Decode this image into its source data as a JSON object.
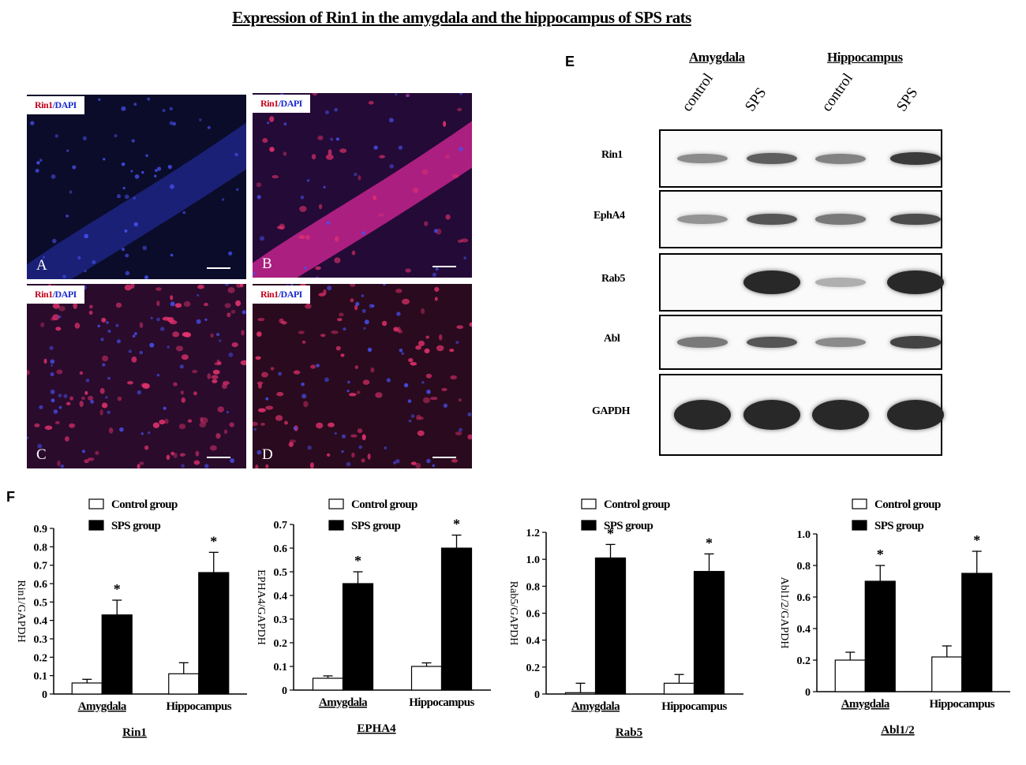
{
  "title": "Expression of  Rin1 in the amygdala and the hippocampus of SPS rats",
  "micrographs": [
    {
      "letter": "A",
      "stain_red": "Rin1",
      "stain_blue": "/DAPI"
    },
    {
      "letter": "B",
      "stain_red": "Rin1",
      "stain_blue": "/DAPI"
    },
    {
      "letter": "C",
      "stain_red": "Rin1",
      "stain_blue": "/DAPI"
    },
    {
      "letter": "D",
      "stain_red": "Rin1",
      "stain_blue": "/DAPI"
    }
  ],
  "western": {
    "panel_letter": "E",
    "regions": [
      "Amygdala",
      "Hippocampus"
    ],
    "lanes": [
      "control",
      "SPS",
      "control",
      "SPS"
    ],
    "blots": [
      {
        "name": "Rin1",
        "intensity": [
          0.45,
          0.7,
          0.5,
          0.9
        ]
      },
      {
        "name": "EphA4",
        "intensity": [
          0.4,
          0.75,
          0.55,
          0.8
        ]
      },
      {
        "name": "Rab5",
        "intensity": [
          0.02,
          1.0,
          0.25,
          1.0
        ]
      },
      {
        "name": "Abl",
        "intensity": [
          0.55,
          0.75,
          0.45,
          0.85
        ]
      },
      {
        "name": "GAPDH",
        "intensity": [
          1.0,
          1.0,
          1.0,
          1.0
        ]
      }
    ]
  },
  "panel_f_letter": "F",
  "chart_data": [
    {
      "type": "bar",
      "title": "Rin1",
      "ylabel": "Rin1/GAPDH",
      "ylim": [
        0,
        0.9
      ],
      "yticks": [
        "0",
        "0.1",
        "0.2",
        "0.3",
        "0.4",
        "0.5",
        "0.6",
        "0.7",
        "0.8",
        "0.9"
      ],
      "categories": [
        "Amygdala",
        "Hippocampus"
      ],
      "series": [
        {
          "name": "Control group",
          "values": [
            0.06,
            0.11
          ],
          "errors": [
            0.02,
            0.06
          ],
          "color": "#ffffff"
        },
        {
          "name": "SPS group",
          "values": [
            0.43,
            0.66
          ],
          "errors": [
            0.08,
            0.11
          ],
          "color": "#000000"
        }
      ],
      "significance": [
        "*",
        "*"
      ]
    },
    {
      "type": "bar",
      "title": "EPHA4",
      "ylabel": "EPHA4/GAPDH",
      "ylim": [
        0,
        0.7
      ],
      "yticks": [
        "0",
        "0.1",
        "0.2",
        "0.3",
        "0.4",
        "0.5",
        "0.6",
        "0.7"
      ],
      "categories": [
        "Amygdala",
        "Hippocampus"
      ],
      "series": [
        {
          "name": "Control group",
          "values": [
            0.05,
            0.1
          ],
          "errors": [
            0.01,
            0.015
          ],
          "color": "#ffffff"
        },
        {
          "name": "SPS group",
          "values": [
            0.45,
            0.6
          ],
          "errors": [
            0.05,
            0.055
          ],
          "color": "#000000"
        }
      ],
      "significance": [
        "*",
        "*"
      ]
    },
    {
      "type": "bar",
      "title": "Rab5",
      "ylabel": "Rab5/GAPDH",
      "ylim": [
        0,
        1.2
      ],
      "yticks": [
        "0",
        "0.2",
        "0.4",
        "0.6",
        "0.8",
        "1.0",
        "1.2"
      ],
      "categories": [
        "Amygdala",
        "Hippocampus"
      ],
      "series": [
        {
          "name": "Control group",
          "values": [
            0.01,
            0.08
          ],
          "errors": [
            0.07,
            0.065
          ],
          "color": "#ffffff"
        },
        {
          "name": "SPS group",
          "values": [
            1.01,
            0.91
          ],
          "errors": [
            0.1,
            0.13
          ],
          "color": "#000000"
        }
      ],
      "significance": [
        "*",
        "*"
      ]
    },
    {
      "type": "bar",
      "title": "Abl1/2",
      "ylabel": "Abl1/2/GAPDH",
      "ylim": [
        0,
        1.0
      ],
      "yticks": [
        "0",
        "0.2",
        "0.4",
        "0.6",
        "0.8",
        "1.0"
      ],
      "categories": [
        "Amygdala",
        "Hippocampus"
      ],
      "series": [
        {
          "name": "Control group",
          "values": [
            0.2,
            0.22
          ],
          "errors": [
            0.05,
            0.07
          ],
          "color": "#ffffff"
        },
        {
          "name": "SPS group",
          "values": [
            0.7,
            0.75
          ],
          "errors": [
            0.1,
            0.14
          ],
          "color": "#000000"
        }
      ],
      "significance": [
        "*",
        "*"
      ]
    }
  ]
}
